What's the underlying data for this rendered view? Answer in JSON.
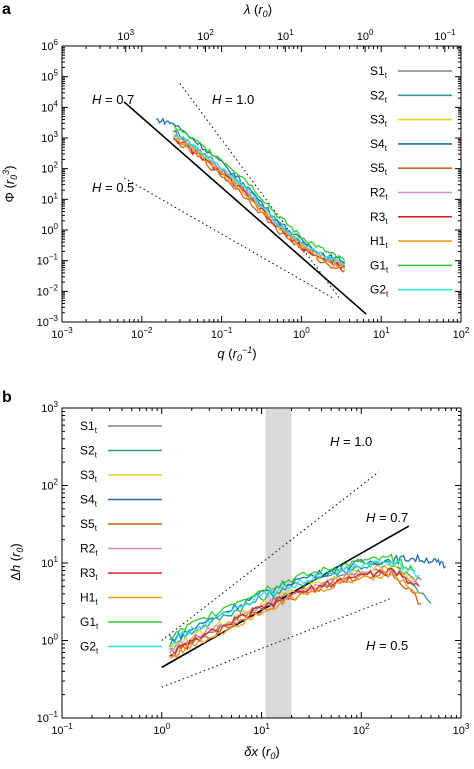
{
  "panels": [
    {
      "letter": "a",
      "xlabel": "q (r0^-1)",
      "ylabel": "Φ (r0^3)",
      "top_xlabel": "λ (r0)",
      "annotations": [
        "H = 0.7",
        "H = 1.0",
        "H = 0.5"
      ],
      "legend": [
        "S1",
        "S2",
        "S3",
        "S4",
        "S5",
        "R2",
        "R3",
        "H1",
        "G1",
        "G2"
      ],
      "legend_subscript": "t"
    },
    {
      "letter": "b",
      "xlabel": "δx (r0)",
      "ylabel": "Δh (r0)",
      "annotations": [
        "H = 1.0",
        "H = 0.7",
        "H = 0.5"
      ],
      "legend": [
        "S1",
        "S2",
        "S3",
        "S4",
        "S5",
        "R2",
        "R3",
        "H1",
        "G1",
        "G2"
      ],
      "legend_subscript": "t"
    }
  ],
  "colors": {
    "S1": "#808080",
    "S2": "#2a9d8f",
    "S3": "#e6d22a",
    "S4": "#1f6fb5",
    "S5": "#c8641e",
    "R2": "#d48fc0",
    "R3": "#d62728",
    "H1": "#f29b1d",
    "G1": "#2ecc2e",
    "G2": "#33e6e6"
  },
  "chart_data": [
    {
      "type": "line",
      "panel": "a",
      "x_scale": "log",
      "y_scale": "log",
      "xlim": [
        0.001,
        100
      ],
      "ylim": [
        0.001,
        1000000
      ],
      "x_ticks": [
        "10^-3",
        "10^-2",
        "10^-1",
        "10^0",
        "10^1",
        "10^2"
      ],
      "y_ticks": [
        "10^-3",
        "10^-2",
        "10^-1",
        "10^0",
        "10^1",
        "10^2",
        "10^3",
        "10^4",
        "10^5",
        "10^6"
      ],
      "top_x_ticks": [
        "10^3",
        "10^2",
        "10^1",
        "10^0",
        "10^-1"
      ],
      "grid": false,
      "legend_position": "right",
      "reference_lines": [
        {
          "label": "H = 0.7",
          "style": "solid",
          "x": [
            0.006,
            6.5
          ],
          "y": [
            15000,
            0.0018
          ]
        },
        {
          "label": "H = 1.0",
          "style": "dotted",
          "x": [
            0.03,
            3.0
          ],
          "y": [
            60000,
            0.006
          ]
        },
        {
          "label": "H = 0.5",
          "style": "dotted",
          "x": [
            0.006,
            2.5
          ],
          "y": [
            50,
            0.006
          ]
        }
      ],
      "series": [
        {
          "name": "S1",
          "x": [
            0.025,
            0.05,
            0.1,
            0.2,
            0.5,
            1.0,
            2.0,
            3.5
          ],
          "y": [
            1500,
            400,
            90,
            20,
            1.5,
            0.35,
            0.12,
            0.06
          ]
        },
        {
          "name": "S2",
          "x": [
            0.025,
            0.05,
            0.1,
            0.2,
            0.5,
            1.0,
            2.0,
            3.5
          ],
          "y": [
            1800,
            450,
            110,
            25,
            1.8,
            0.4,
            0.14,
            0.08
          ]
        },
        {
          "name": "S3",
          "x": [
            0.025,
            0.05,
            0.1,
            0.2,
            0.5,
            1.0,
            2.0,
            3.5
          ],
          "y": [
            1200,
            350,
            80,
            18,
            1.4,
            0.3,
            0.11,
            0.07
          ]
        },
        {
          "name": "S4",
          "x": [
            0.015,
            0.025,
            0.05,
            0.1,
            0.2,
            0.5,
            1.0,
            2.0,
            3.5
          ],
          "y": [
            4000,
            3000,
            700,
            150,
            30,
            2.0,
            0.45,
            0.15,
            0.09
          ]
        },
        {
          "name": "S5",
          "x": [
            0.025,
            0.05,
            0.1,
            0.2,
            0.5,
            1.0,
            2.0,
            3.5
          ],
          "y": [
            900,
            250,
            60,
            12,
            1.0,
            0.25,
            0.08,
            0.05
          ]
        },
        {
          "name": "R2",
          "x": [
            0.025,
            0.05,
            0.1,
            0.2,
            0.5,
            1.0,
            2.0,
            3.5
          ],
          "y": [
            1300,
            380,
            85,
            19,
            1.5,
            0.33,
            0.12,
            0.07
          ]
        },
        {
          "name": "R3",
          "x": [
            0.025,
            0.05,
            0.1,
            0.2,
            0.5,
            1.0,
            2.0,
            3.5
          ],
          "y": [
            1000,
            300,
            70,
            15,
            1.2,
            0.28,
            0.1,
            0.06
          ]
        },
        {
          "name": "H1",
          "x": [
            0.025,
            0.05,
            0.1,
            0.2,
            0.5,
            1.0,
            2.0,
            3.5
          ],
          "y": [
            1100,
            320,
            75,
            16,
            1.3,
            0.3,
            0.1,
            0.06
          ]
        },
        {
          "name": "G1",
          "x": [
            0.025,
            0.05,
            0.1,
            0.2,
            0.5,
            1.0,
            2.0,
            3.5
          ],
          "y": [
            2500,
            700,
            200,
            45,
            3.0,
            0.6,
            0.2,
            0.1
          ]
        },
        {
          "name": "G2",
          "x": [
            0.025,
            0.05,
            0.1,
            0.2,
            0.5,
            1.0,
            2.0,
            3.5
          ],
          "y": [
            1600,
            420,
            100,
            22,
            1.7,
            0.38,
            0.13,
            0.08
          ]
        }
      ]
    },
    {
      "type": "line",
      "panel": "b",
      "x_scale": "log",
      "y_scale": "log",
      "xlim": [
        0.1,
        1000
      ],
      "ylim": [
        0.1,
        1000
      ],
      "x_ticks": [
        "10^-1",
        "10^0",
        "10^1",
        "10^2",
        "10^3"
      ],
      "y_ticks": [
        "10^-1",
        "10^0",
        "10^1",
        "10^2",
        "10^3"
      ],
      "grid": false,
      "legend_position": "left",
      "shaded_band_x": [
        11,
        20
      ],
      "reference_lines": [
        {
          "label": "H = 0.7",
          "style": "solid",
          "x": [
            1.0,
            300
          ],
          "y": [
            0.45,
            30
          ]
        },
        {
          "label": "H = 1.0",
          "style": "dotted",
          "x": [
            1.0,
            150
          ],
          "y": [
            1.0,
            150
          ]
        },
        {
          "label": "H = 0.5",
          "style": "dotted",
          "x": [
            1.0,
            200
          ],
          "y": [
            0.25,
            3.5
          ]
        }
      ],
      "series": [
        {
          "name": "S1",
          "x": [
            1.2,
            2,
            5,
            10,
            20,
            50,
            100,
            200,
            400
          ],
          "y": [
            0.7,
            1.0,
            1.8,
            2.8,
            4.0,
            5.8,
            7.5,
            8.5,
            6.0
          ]
        },
        {
          "name": "S2",
          "x": [
            1.2,
            2,
            5,
            10,
            20,
            50,
            100,
            200,
            500
          ],
          "y": [
            0.9,
            1.3,
            2.3,
            3.5,
            5.0,
            7.2,
            9.0,
            10.0,
            3.0
          ]
        },
        {
          "name": "S3",
          "x": [
            1.2,
            2,
            5,
            10,
            20,
            50,
            100,
            200,
            350
          ],
          "y": [
            0.8,
            1.1,
            1.9,
            2.9,
            4.2,
            6.0,
            7.8,
            9.0,
            6.0
          ]
        },
        {
          "name": "S4",
          "x": [
            1.2,
            2,
            5,
            10,
            20,
            50,
            100,
            200,
            300,
            500,
            700
          ],
          "y": [
            1.0,
            1.4,
            2.6,
            4.0,
            5.8,
            8.0,
            10.0,
            11.0,
            11.5,
            11.0,
            9.0
          ]
        },
        {
          "name": "S5",
          "x": [
            1.2,
            2,
            5,
            10,
            20,
            50,
            100,
            200,
            400
          ],
          "y": [
            0.6,
            0.9,
            1.6,
            2.5,
            3.6,
            5.2,
            6.8,
            7.5,
            3.0
          ]
        },
        {
          "name": "R2",
          "x": [
            1.2,
            2,
            5,
            10,
            20,
            50,
            100,
            200,
            380
          ],
          "y": [
            0.75,
            1.05,
            1.8,
            2.8,
            4.0,
            5.8,
            7.4,
            8.2,
            5.0
          ]
        },
        {
          "name": "R3",
          "x": [
            1.2,
            2,
            5,
            10,
            20,
            50,
            100,
            200,
            380
          ],
          "y": [
            0.65,
            0.95,
            1.7,
            2.6,
            3.8,
            5.5,
            7.0,
            7.8,
            5.0
          ]
        },
        {
          "name": "H1",
          "x": [
            1.2,
            2,
            5,
            10,
            20,
            50,
            100,
            200,
            400
          ],
          "y": [
            0.6,
            0.85,
            1.5,
            2.4,
            3.4,
            5.0,
            6.5,
            7.2,
            4.0
          ]
        },
        {
          "name": "G1",
          "x": [
            1.2,
            2,
            5,
            10,
            20,
            50,
            100,
            200,
            350
          ],
          "y": [
            1.1,
            1.6,
            3.0,
            4.5,
            6.2,
            8.5,
            10.5,
            11.5,
            8.0
          ]
        },
        {
          "name": "G2",
          "x": [
            1.2,
            2,
            5,
            10,
            20,
            50,
            100,
            200,
            380
          ],
          "y": [
            0.95,
            1.35,
            2.4,
            3.7,
            5.2,
            7.4,
            9.2,
            10.3,
            7.0
          ]
        }
      ]
    }
  ]
}
